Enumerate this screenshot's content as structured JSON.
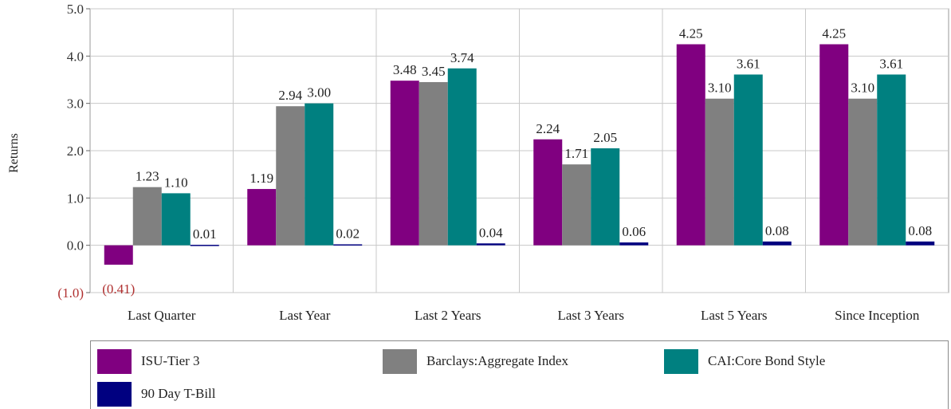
{
  "chart_data": {
    "type": "bar",
    "ylabel": "Returns",
    "ylim": [
      -1.0,
      5.0
    ],
    "yticks": [
      {
        "value": 5.0,
        "label": "5.0"
      },
      {
        "value": 4.0,
        "label": "4.0"
      },
      {
        "value": 3.0,
        "label": "3.0"
      },
      {
        "value": 2.0,
        "label": "2.0"
      },
      {
        "value": 1.0,
        "label": "1.0"
      },
      {
        "value": 0.0,
        "label": "0.0"
      },
      {
        "value": -1.0,
        "label": "(1.0)"
      }
    ],
    "categories": [
      "Last Quarter",
      "Last Year",
      "Last 2 Years",
      "Last 3 Years",
      "Last 5 Years",
      "Since Inception"
    ],
    "series": [
      {
        "name": "ISU-Tier 3",
        "color": "#800080",
        "values": [
          -0.41,
          1.19,
          3.48,
          2.24,
          4.25,
          4.25
        ],
        "labels": [
          "(0.41)",
          "1.19",
          "3.48",
          "2.24",
          "4.25",
          "4.25"
        ]
      },
      {
        "name": "Barclays:Aggregate Index",
        "color": "#808080",
        "values": [
          1.23,
          2.94,
          3.45,
          1.71,
          3.1,
          3.1
        ],
        "labels": [
          "1.23",
          "2.94",
          "3.45",
          "1.71",
          "3.10",
          "3.10"
        ]
      },
      {
        "name": "CAI:Core Bond Style",
        "color": "#008080",
        "values": [
          1.1,
          3.0,
          3.74,
          2.05,
          3.61,
          3.61
        ],
        "labels": [
          "1.10",
          "3.00",
          "3.74",
          "2.05",
          "3.61",
          "3.61"
        ]
      },
      {
        "name": "90 Day T-Bill",
        "color": "#000080",
        "values": [
          0.01,
          0.02,
          0.04,
          0.06,
          0.08,
          0.08
        ],
        "labels": [
          "0.01",
          "0.02",
          "0.04",
          "0.06",
          "0.08",
          "0.08"
        ]
      }
    ],
    "grid": true,
    "legend_position": "bottom"
  }
}
